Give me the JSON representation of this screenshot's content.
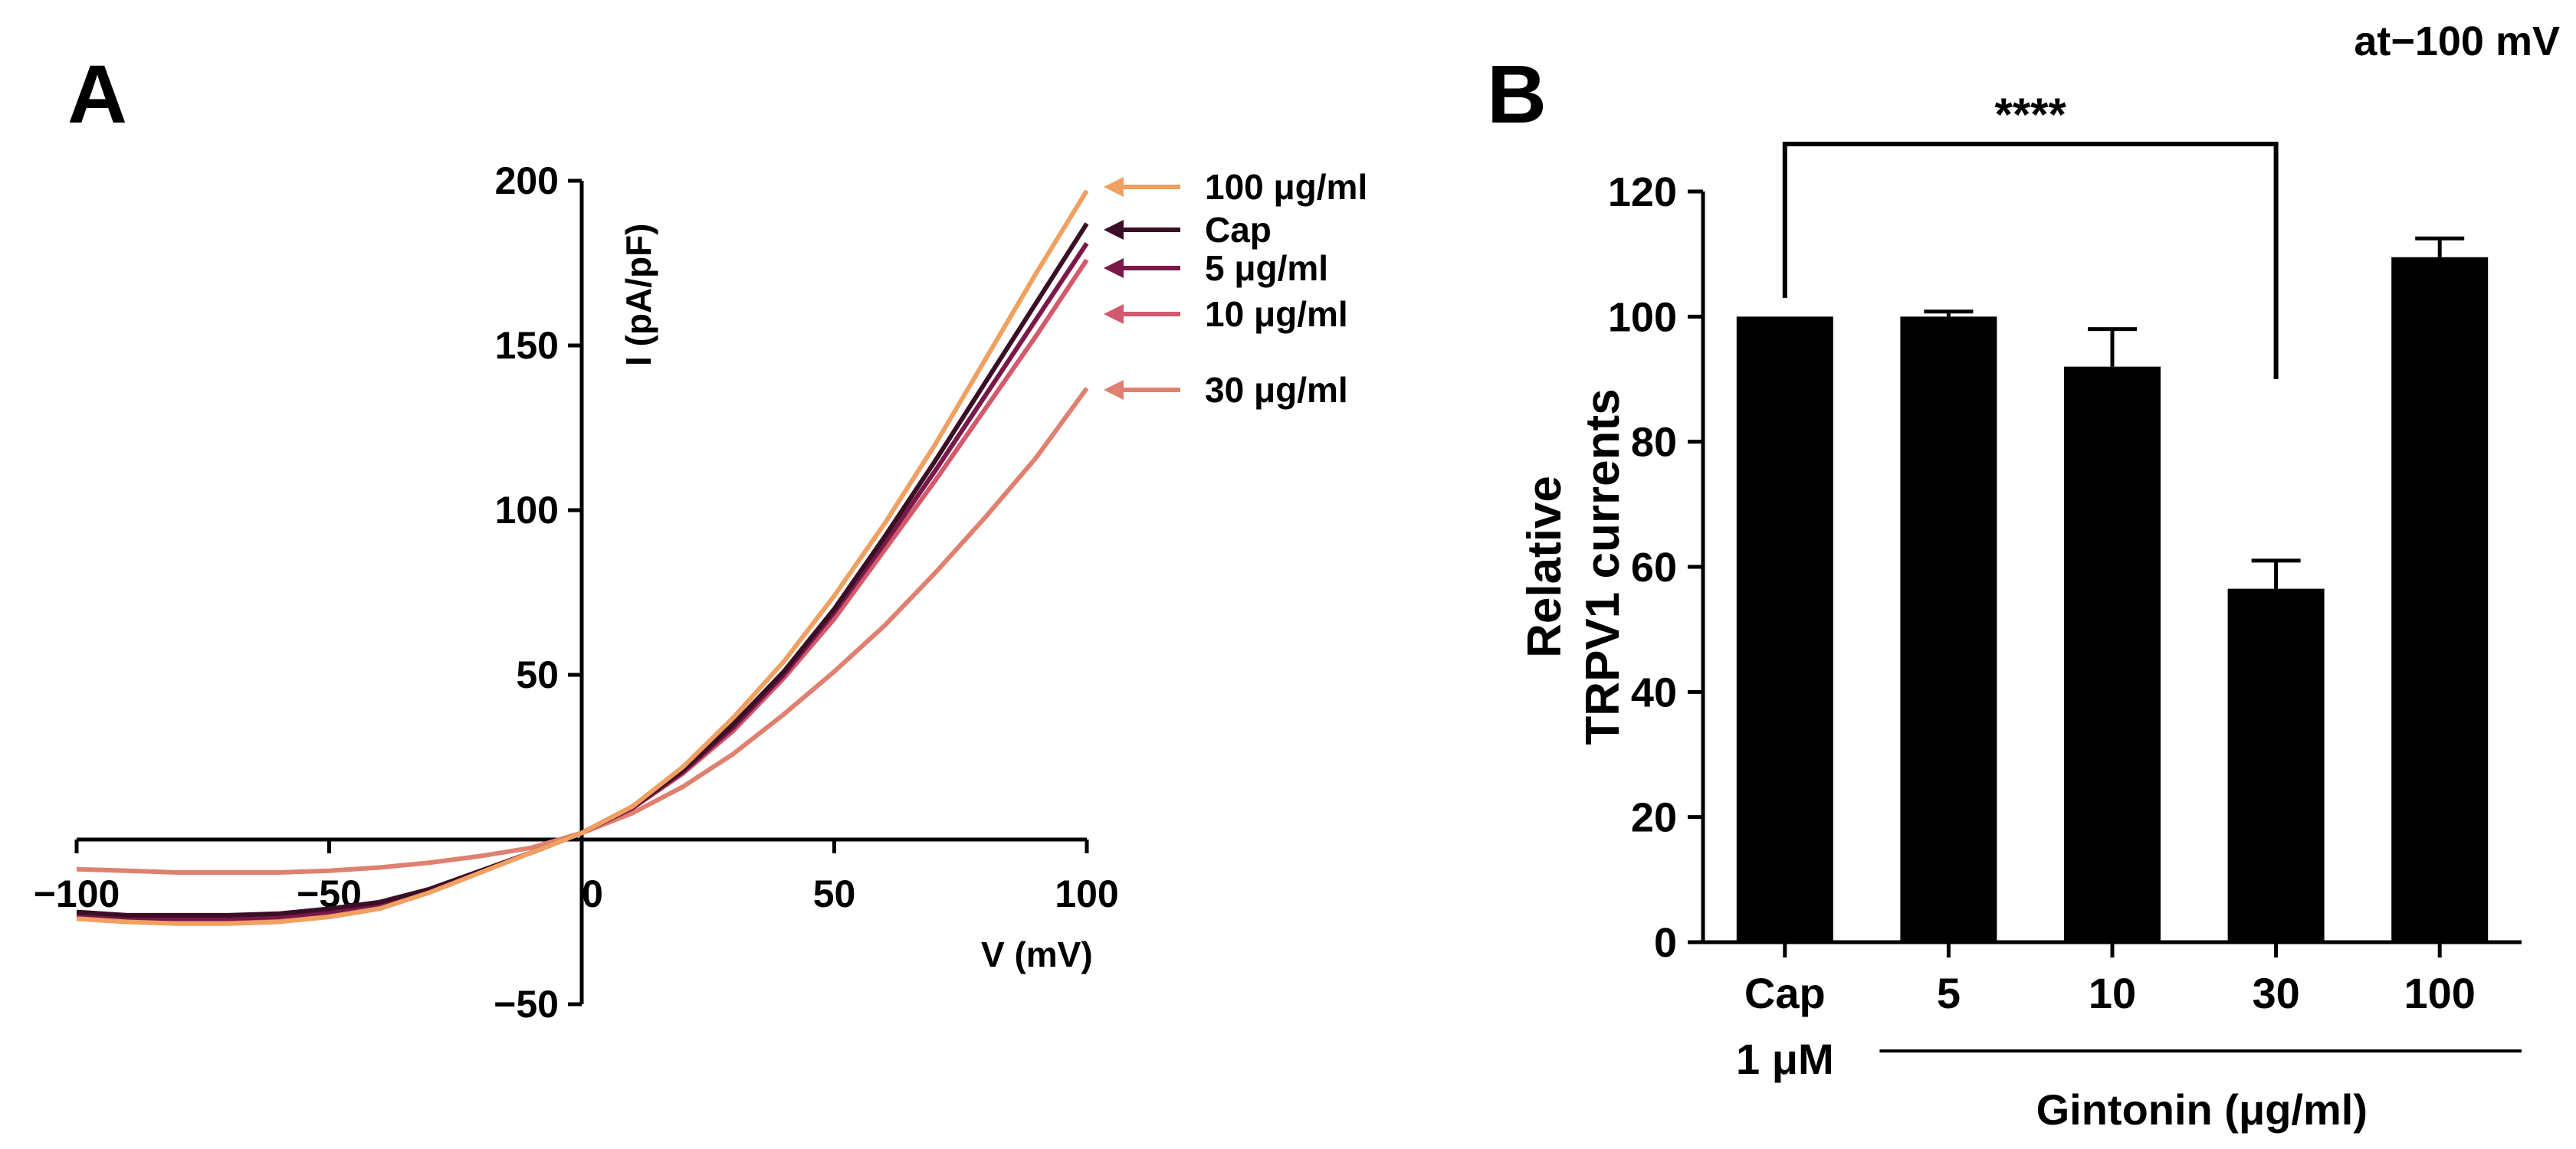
{
  "panels": {
    "a_label": "A",
    "b_label": "B"
  },
  "chart_data": [
    {
      "type": "line",
      "panel": "A",
      "xlabel": "V (mV)",
      "ylabel": "I (pA/pF)",
      "xlim": [
        -100,
        100
      ],
      "ylim": [
        -50,
        200
      ],
      "xticks": [
        -100,
        -50,
        0,
        50,
        100
      ],
      "yticks": [
        -50,
        0,
        50,
        100,
        150,
        200
      ],
      "tick_labels_x": [
        "−100",
        "−50",
        "0",
        "50",
        "100"
      ],
      "tick_labels_y": [
        "−50",
        "0",
        "50",
        "100",
        "150",
        "200"
      ],
      "series": [
        {
          "name": "100 μg/ml",
          "color": "#f0a060",
          "x": [
            -100,
            -90,
            -80,
            -70,
            -60,
            -50,
            -40,
            -30,
            -20,
            -10,
            0,
            10,
            20,
            30,
            40,
            50,
            60,
            70,
            80,
            90,
            100
          ],
          "y": [
            -24,
            -25,
            -25.5,
            -25.5,
            -25,
            -23.5,
            -21,
            -16,
            -10,
            -4,
            2,
            10,
            22,
            37,
            54,
            74,
            96,
            120,
            146,
            172,
            197
          ]
        },
        {
          "name": "Cap",
          "color": "#3a0f26",
          "x": [
            -100,
            -90,
            -80,
            -70,
            -60,
            -50,
            -40,
            -30,
            -20,
            -10,
            0,
            10,
            20,
            30,
            40,
            50,
            60,
            70,
            80,
            90,
            100
          ],
          "y": [
            -22,
            -23,
            -23,
            -23,
            -22.5,
            -21,
            -19,
            -15,
            -9.5,
            -4,
            2,
            10,
            21,
            35,
            51,
            70,
            92,
            115,
            139,
            163,
            187
          ]
        },
        {
          "name": "5 μg/ml",
          "color": "#7a1848",
          "x": [
            -100,
            -90,
            -80,
            -70,
            -60,
            -50,
            -40,
            -30,
            -20,
            -10,
            0,
            10,
            20,
            30,
            40,
            50,
            60,
            70,
            80,
            90,
            100
          ],
          "y": [
            -23,
            -24,
            -24,
            -24,
            -23.5,
            -22,
            -19.5,
            -15,
            -9.5,
            -4,
            2,
            9.5,
            20.5,
            34,
            50,
            69,
            90,
            112,
            135,
            158,
            181
          ]
        },
        {
          "name": "10 μg/ml",
          "color": "#d35a6c",
          "x": [
            -100,
            -90,
            -80,
            -70,
            -60,
            -50,
            -40,
            -30,
            -20,
            -10,
            0,
            10,
            20,
            30,
            40,
            50,
            60,
            70,
            80,
            90,
            100
          ],
          "y": [
            -24,
            -25,
            -25,
            -25,
            -24.5,
            -23,
            -20,
            -15.5,
            -9.5,
            -4,
            2,
            9.5,
            20,
            33,
            49,
            67,
            88,
            109,
            131,
            153,
            176
          ]
        },
        {
          "name": "30 μg/ml",
          "color": "#df8070",
          "x": [
            -100,
            -90,
            -80,
            -70,
            -60,
            -50,
            -40,
            -30,
            -20,
            -10,
            0,
            10,
            20,
            30,
            40,
            50,
            60,
            70,
            80,
            90,
            100
          ],
          "y": [
            -9,
            -9.5,
            -10,
            -10,
            -10,
            -9.5,
            -8.5,
            -7,
            -5,
            -2.5,
            2,
            8,
            16,
            26,
            38,
            51,
            65,
            81,
            98,
            116,
            137
          ]
        }
      ]
    },
    {
      "type": "bar",
      "panel": "B",
      "title": "at−100 mV",
      "ylabel_line1": "Relative",
      "ylabel_line2": "TRPV1 currents",
      "ylim": [
        0,
        120
      ],
      "yticks": [
        0,
        20,
        40,
        60,
        80,
        100,
        120
      ],
      "categories": [
        "Cap 1 μM",
        "5",
        "10",
        "30",
        "100"
      ],
      "category_line1": [
        "Cap",
        "5",
        "10",
        "30",
        "100"
      ],
      "category_line2": [
        "1 μM",
        "",
        "",
        "",
        ""
      ],
      "values": [
        100,
        100,
        92,
        56.5,
        109.5
      ],
      "errors": [
        0,
        0.8,
        6,
        4.5,
        3
      ],
      "group_label": "Gintonin (μg/ml)",
      "significance": {
        "from": "Cap 1 μM",
        "to": "30",
        "label": "****"
      }
    }
  ]
}
